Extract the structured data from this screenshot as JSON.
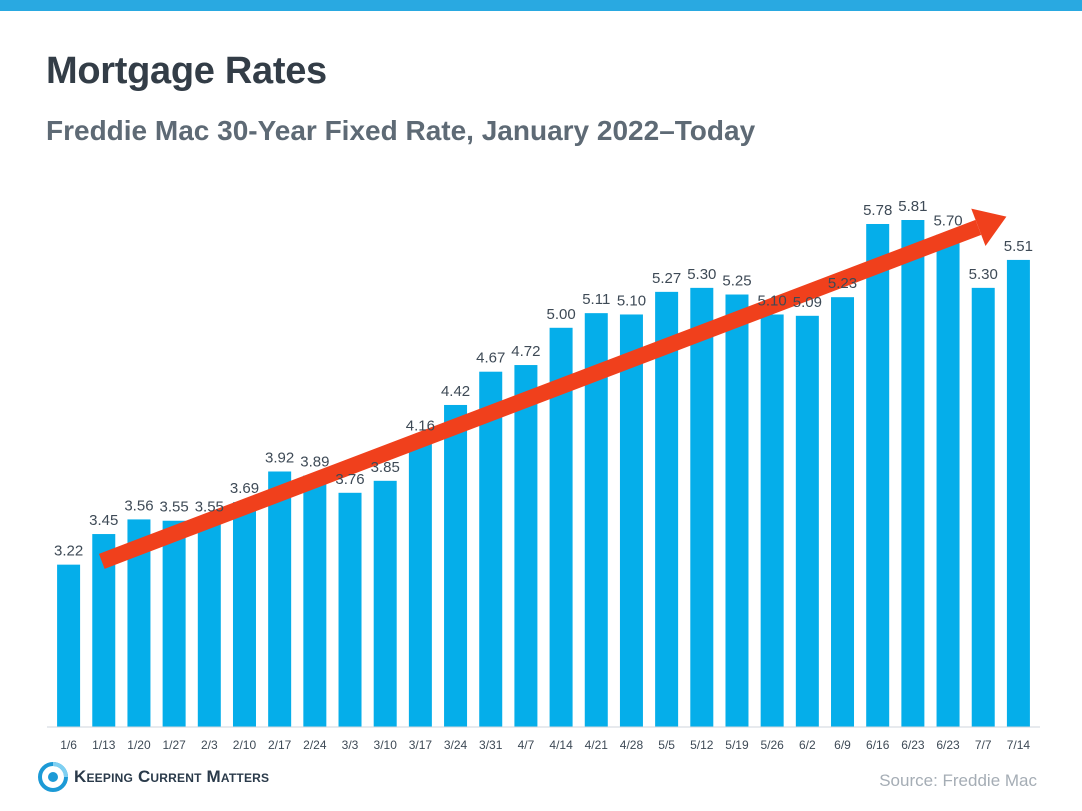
{
  "header": {
    "title": "Mortgage Rates",
    "subtitle": "Freddie Mac 30-Year Fixed Rate, January 2022–Today"
  },
  "footer": {
    "brand": "Keeping Current Matters",
    "source": "Source: Freddie Mac",
    "logo_icon": "kcm-logo-icon"
  },
  "colors": {
    "bar": "#05aeea",
    "trend_arrow": "#f0401c",
    "top_bar": "#29a9e1",
    "label": "#3e4a56"
  },
  "chart_data": {
    "type": "bar",
    "title": "Mortgage Rates",
    "subtitle": "Freddie Mac 30-Year Fixed Rate, January 2022–Today",
    "xlabel": "",
    "ylabel": "",
    "ylim": [
      2.0,
      6.6
    ],
    "grid": false,
    "legend": "none",
    "categories": [
      "1/6",
      "1/13",
      "1/20",
      "1/27",
      "2/3",
      "2/10",
      "2/17",
      "2/24",
      "3/3",
      "3/10",
      "3/17",
      "3/24",
      "3/31",
      "4/7",
      "4/14",
      "4/21",
      "4/28",
      "5/5",
      "5/12",
      "5/19",
      "5/26",
      "6/2",
      "6/9",
      "6/16",
      "6/23",
      "6/23",
      "7/7",
      "7/14"
    ],
    "values": [
      3.22,
      3.45,
      3.56,
      3.55,
      3.55,
      3.69,
      3.92,
      3.89,
      3.76,
      3.85,
      4.16,
      4.42,
      4.67,
      4.72,
      5.0,
      5.11,
      5.1,
      5.27,
      5.3,
      5.25,
      5.1,
      5.09,
      5.23,
      5.78,
      5.81,
      5.7,
      5.3,
      5.51
    ],
    "data_labels": [
      "3.22",
      "3.45",
      "3.56",
      "3.55",
      "3.55",
      "3.69",
      "3.92",
      "3.89",
      "3.76",
      "3.85",
      "4.16",
      "4.42",
      "4.67",
      "4.72",
      "5.00",
      "5.11",
      "5.10",
      "5.27",
      "5.30",
      "5.25",
      "5.10",
      "5.09",
      "5.23",
      "5.78",
      "5.81",
      "5.70",
      "5.30",
      "5.51"
    ],
    "trend_arrow": {
      "from_index": 1,
      "from_value": 3.38,
      "to_index": 27,
      "to_value": 5.82,
      "direction": "up"
    }
  }
}
